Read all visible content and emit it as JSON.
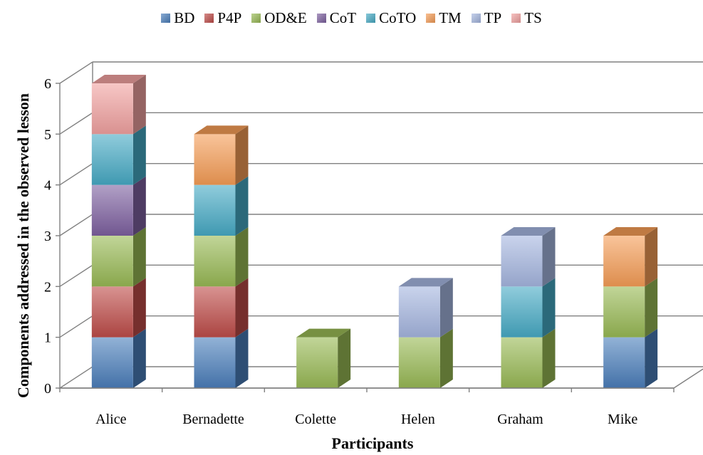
{
  "chart_data": {
    "type": "bar",
    "stacked": true,
    "three_d": true,
    "categories": [
      "Alice",
      "Bernadette",
      "Colette",
      "Helen",
      "Graham",
      "Mike"
    ],
    "series": [
      {
        "name": "BD",
        "color": "#4A7EBB",
        "values": [
          1,
          1,
          0,
          0,
          0,
          1
        ]
      },
      {
        "name": "P4P",
        "color": "#BE4B48",
        "values": [
          1,
          1,
          0,
          0,
          0,
          0
        ]
      },
      {
        "name": "OD&E",
        "color": "#98B954",
        "values": [
          1,
          1,
          1,
          1,
          1,
          1
        ]
      },
      {
        "name": "CoT",
        "color": "#7D60A0",
        "values": [
          1,
          0,
          0,
          0,
          0,
          0
        ]
      },
      {
        "name": "CoTO",
        "color": "#46AAC5",
        "values": [
          1,
          1,
          0,
          0,
          1,
          0
        ]
      },
      {
        "name": "TM",
        "color": "#F59D56",
        "values": [
          0,
          1,
          0,
          0,
          0,
          1
        ]
      },
      {
        "name": "TP",
        "color": "#A5B6E0",
        "values": [
          0,
          0,
          0,
          1,
          1,
          0
        ]
      },
      {
        "name": "TS",
        "color": "#F1A1A0",
        "values": [
          1,
          0,
          0,
          0,
          0,
          0
        ]
      }
    ],
    "xlabel": "Participants",
    "ylabel": "Components addressed in the observed lesson",
    "ylim": [
      0,
      6
    ],
    "yticks": [
      0,
      1,
      2,
      3,
      4,
      5,
      6
    ],
    "grid": true,
    "legend_position": "top"
  }
}
